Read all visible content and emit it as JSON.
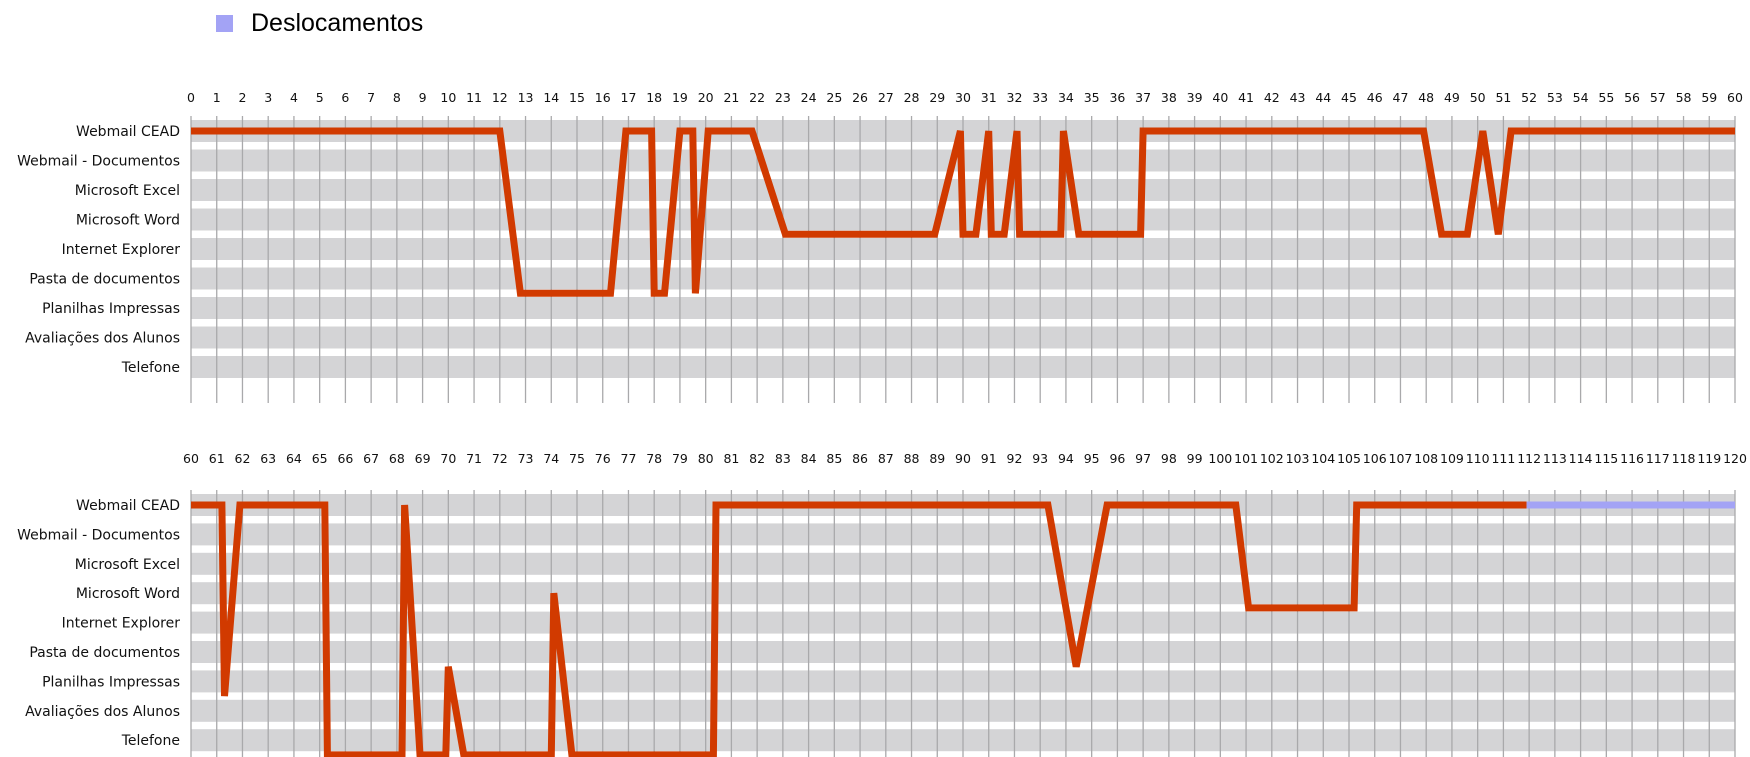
{
  "legend": {
    "label": "Deslocamentos",
    "color": "#a3a3f5"
  },
  "colors": {
    "band": "#d4d4d6",
    "grid": "#a9a9ab",
    "track": "#d13a00",
    "displacement": "#a3a3f5"
  },
  "chart_data": [
    {
      "type": "line",
      "x_range": [
        0,
        60
      ],
      "x_ticks": [
        "0",
        "1",
        "2",
        "3",
        "4",
        "5",
        "6",
        "7",
        "8",
        "9",
        "10",
        "11",
        "12",
        "13",
        "14",
        "15",
        "16",
        "17",
        "18",
        "19",
        "20",
        "21",
        "22",
        "23",
        "24",
        "25",
        "26",
        "27",
        "28",
        "29",
        "30",
        "31",
        "32",
        "33",
        "34",
        "35",
        "36",
        "37",
        "38",
        "39",
        "40",
        "41",
        "42",
        "43",
        "44",
        "45",
        "46",
        "47",
        "48",
        "49",
        "50",
        "51",
        "52",
        "53",
        "54",
        "55",
        "56",
        "57",
        "58",
        "59",
        "60"
      ],
      "categories": [
        "Webmail CEAD",
        "Webmail - Documentos",
        "Microsoft Excel",
        "Microsoft Word",
        "Internet Explorer",
        "Pasta de documentos",
        "Planilhas Impressas",
        "Avaliações dos Alunos",
        "Telefone"
      ],
      "series": [
        {
          "color": "#d13a00",
          "points": [
            [
              0,
              0
            ],
            [
              12,
              0
            ],
            [
              12.8,
              5.5
            ],
            [
              16.3,
              5.5
            ],
            [
              16.9,
              0
            ],
            [
              17.9,
              0
            ],
            [
              18,
              5.5
            ],
            [
              18.4,
              5.5
            ],
            [
              19,
              0
            ],
            [
              19.5,
              0
            ],
            [
              19.6,
              5.5
            ],
            [
              20.1,
              0
            ],
            [
              21.8,
              0
            ],
            [
              23.1,
              3.5
            ],
            [
              28.9,
              3.5
            ],
            [
              29.9,
              0
            ],
            [
              30,
              3.5
            ],
            [
              30.5,
              3.5
            ],
            [
              31,
              0
            ],
            [
              31.1,
              3.5
            ],
            [
              31.6,
              3.5
            ],
            [
              32.1,
              0
            ],
            [
              32.2,
              3.5
            ],
            [
              33.8,
              3.5
            ],
            [
              33.9,
              0
            ],
            [
              34.5,
              3.5
            ],
            [
              36.9,
              3.5
            ],
            [
              37,
              0
            ],
            [
              47.9,
              0
            ],
            [
              48.6,
              3.5
            ],
            [
              49.6,
              3.5
            ],
            [
              50.2,
              0
            ],
            [
              50.8,
              3.5
            ],
            [
              51.3,
              0
            ],
            [
              60,
              0
            ]
          ]
        }
      ]
    },
    {
      "type": "line",
      "x_range": [
        60,
        120
      ],
      "x_ticks": [
        "60",
        "61",
        "62",
        "63",
        "64",
        "65",
        "66",
        "67",
        "68",
        "69",
        "70",
        "71",
        "72",
        "73",
        "74",
        "75",
        "76",
        "77",
        "78",
        "79",
        "80",
        "81",
        "82",
        "83",
        "84",
        "85",
        "86",
        "87",
        "88",
        "89",
        "90",
        "91",
        "92",
        "93",
        "94",
        "95",
        "96",
        "97",
        "98",
        "99",
        "100",
        "101",
        "102",
        "103",
        "104",
        "105",
        "106",
        "107",
        "108",
        "109",
        "110",
        "111",
        "112",
        "113",
        "114",
        "115",
        "116",
        "117",
        "118",
        "119",
        "120"
      ],
      "categories": [
        "Webmail CEAD",
        "Webmail - Documentos",
        "Microsoft Excel",
        "Microsoft Word",
        "Internet Explorer",
        "Pasta de documentos",
        "Planilhas Impressas",
        "Avaliações dos Alunos",
        "Telefone"
      ],
      "series": [
        {
          "color": "#d13a00",
          "points": [
            [
              60,
              0
            ],
            [
              61.2,
              0
            ],
            [
              61.3,
              6.5
            ],
            [
              61.9,
              0
            ],
            [
              65.2,
              0
            ],
            [
              65.3,
              8.5
            ],
            [
              68.2,
              8.5
            ],
            [
              68.3,
              0
            ],
            [
              68.9,
              8.5
            ],
            [
              69.9,
              8.5
            ],
            [
              70,
              5.5
            ],
            [
              70.6,
              8.5
            ],
            [
              74,
              8.5
            ],
            [
              74.1,
              3
            ],
            [
              74.8,
              8.5
            ],
            [
              80.3,
              8.5
            ],
            [
              80.4,
              0
            ],
            [
              93.3,
              0
            ],
            [
              94.4,
              5.5
            ],
            [
              95.6,
              0
            ],
            [
              100.6,
              0
            ],
            [
              101.1,
              3.5
            ],
            [
              105.2,
              3.5
            ],
            [
              105.3,
              0
            ],
            [
              111.9,
              0
            ]
          ]
        },
        {
          "color": "#a3a3f5",
          "points": [
            [
              111.9,
              0
            ],
            [
              120,
              0
            ]
          ]
        }
      ]
    }
  ]
}
